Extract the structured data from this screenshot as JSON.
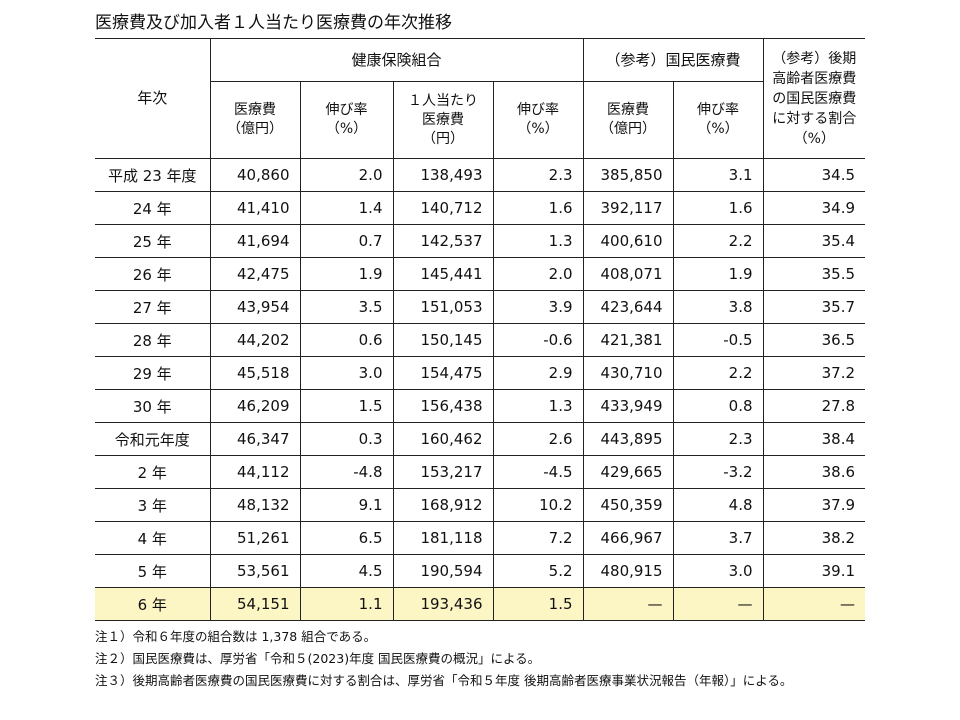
{
  "title": "医療費及び加入者１人当たり医療費の年次推移",
  "table": {
    "header": {
      "year": "年次",
      "groups": [
        "健康保険組合",
        "（参考）国民医療費"
      ],
      "last_column": [
        "（参考）後期",
        "高齢者医療費",
        "の国民医療費",
        "に対する割合",
        "（%）"
      ],
      "columns": [
        [
          "医療費",
          "（億円）"
        ],
        [
          "伸び率",
          "（%）"
        ],
        [
          "１人当たり",
          "医療費",
          "（円）"
        ],
        [
          "伸び率",
          "（%）"
        ],
        [
          "医療費",
          "（億円）"
        ],
        [
          "伸び率",
          "（%）"
        ]
      ]
    },
    "rows": [
      [
        "平成 23 年度",
        "40,860",
        "2.0",
        "138,493",
        "2.3",
        "385,850",
        "3.1",
        "34.5"
      ],
      [
        "24 年",
        "41,410",
        "1.4",
        "140,712",
        "1.6",
        "392,117",
        "1.6",
        "34.9"
      ],
      [
        "25 年",
        "41,694",
        "0.7",
        "142,537",
        "1.3",
        "400,610",
        "2.2",
        "35.4"
      ],
      [
        "26 年",
        "42,475",
        "1.9",
        "145,441",
        "2.0",
        "408,071",
        "1.9",
        "35.5"
      ],
      [
        "27 年",
        "43,954",
        "3.5",
        "151,053",
        "3.9",
        "423,644",
        "3.8",
        "35.7"
      ],
      [
        "28 年",
        "44,202",
        "0.6",
        "150,145",
        "-0.6",
        "421,381",
        "-0.5",
        "36.5"
      ],
      [
        "29 年",
        "45,518",
        "3.0",
        "154,475",
        "2.9",
        "430,710",
        "2.2",
        "37.2"
      ],
      [
        "30 年",
        "46,209",
        "1.5",
        "156,438",
        "1.3",
        "433,949",
        "0.8",
        "27.8"
      ],
      [
        "令和元年度",
        "46,347",
        "0.3",
        "160,462",
        "2.6",
        "443,895",
        "2.3",
        "38.4"
      ],
      [
        "2 年",
        "44,112",
        "-4.8",
        "153,217",
        "-4.5",
        "429,665",
        "-3.2",
        "38.6"
      ],
      [
        "3 年",
        "48,132",
        "9.1",
        "168,912",
        "10.2",
        "450,359",
        "4.8",
        "37.9"
      ],
      [
        "4 年",
        "51,261",
        "6.5",
        "181,118",
        "7.2",
        "466,967",
        "3.7",
        "38.2"
      ],
      [
        "5 年",
        "53,561",
        "4.5",
        "190,594",
        "5.2",
        "480,915",
        "3.0",
        "39.1"
      ],
      [
        "6 年",
        "54,151",
        "1.1",
        "193,436",
        "1.5",
        "—",
        "—",
        "—"
      ]
    ]
  },
  "notes": [
    "注１）令和６年度の組合数は 1,378 組合である。",
    "注２）国民医療費は、厚労省「令和５(2023)年度 国民医療費の概況」による。",
    "注３）後期高齢者医療費の国民医療費に対する割合は、厚労省「令和５年度 後期高齢者医療事業状況報告（年報）」による。"
  ]
}
